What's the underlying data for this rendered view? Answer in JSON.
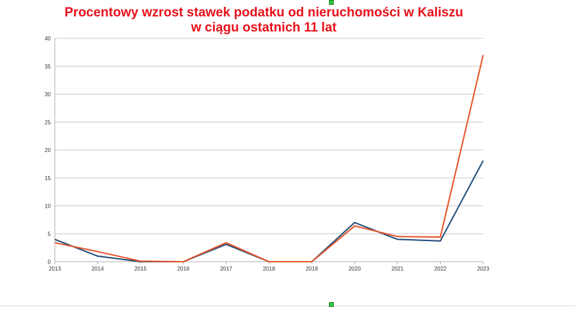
{
  "chart_data": {
    "type": "line",
    "title": "Procentowy wzrost stawek podatku od nieruchomości w Kaliszu",
    "subtitle": "w ciągu ostatnich 11 lat",
    "x": [
      "2013",
      "2014",
      "2015",
      "2016",
      "2017",
      "2018",
      "2019",
      "2020",
      "2021",
      "2022",
      "2023"
    ],
    "ylim": [
      0,
      40
    ],
    "yticks": [
      0,
      5,
      10,
      15,
      20,
      25,
      30,
      35,
      40
    ],
    "grid": true,
    "legend": "none",
    "series": [
      {
        "values": [
          4.0,
          1.0,
          0.0,
          0.0,
          3.1,
          0.0,
          0.0,
          7.0,
          4.0,
          3.7,
          18.1
        ],
        "color": "#1f4e79"
      },
      {
        "values": [
          3.4,
          1.8,
          0.1,
          0.0,
          3.4,
          0.0,
          0.0,
          6.4,
          4.5,
          4.4,
          37.0
        ],
        "color": "#e8532a"
      }
    ]
  }
}
